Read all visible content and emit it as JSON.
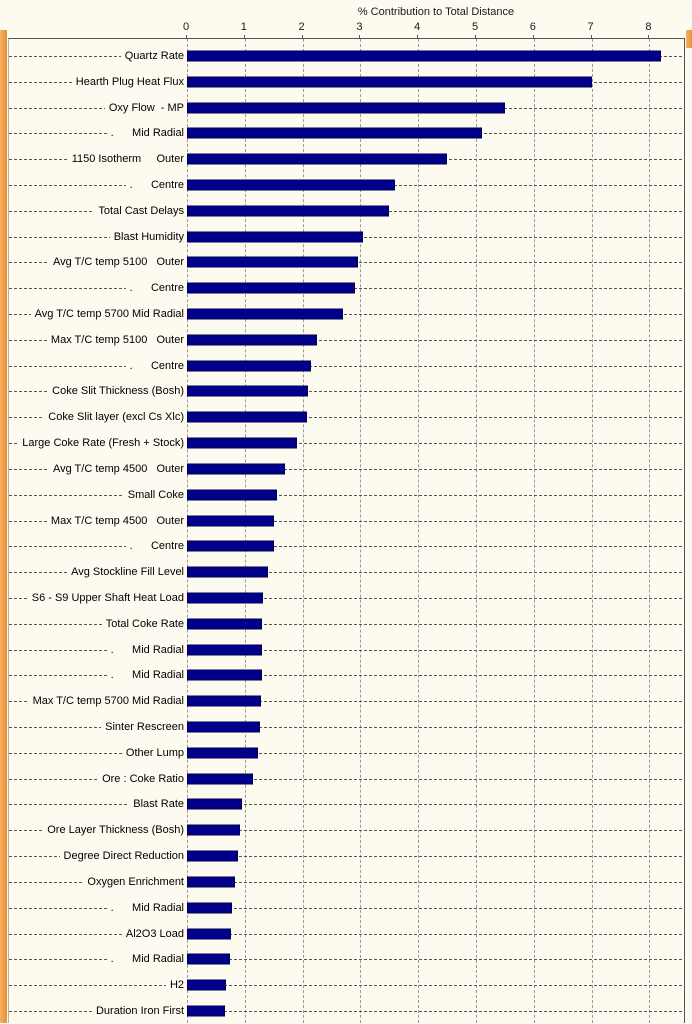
{
  "window": {
    "border_color": "#F0A04B",
    "background_color": "#FDFAF0"
  },
  "chart_data": {
    "type": "bar",
    "orientation": "horizontal",
    "title": "% Contribution to Total Distance",
    "xlabel": "% Contribution to Total Distance",
    "ylabel": "",
    "xlim": [
      0,
      8.65
    ],
    "x_ticks": [
      0,
      1,
      2,
      3,
      4,
      5,
      6,
      7,
      8
    ],
    "grid": "vertical-dashed",
    "legend": "none",
    "bar_color": "#00008B",
    "categories": [
      "Quartz Rate",
      "Hearth Plug Heat Flux",
      "Oxy Flow  - MP",
      ".      Mid Radial",
      "1150 Isotherm     Outer",
      ".      Centre",
      "Total Cast Delays",
      "Blast Humidity",
      "Avg T/C temp 5100   Outer",
      ".      Centre",
      "Avg T/C temp 5700 Mid Radial",
      "Max T/C temp 5100   Outer",
      ".      Centre",
      "Coke Slit Thickness (Bosh)",
      "Coke Slit layer (excl Cs Xlc)",
      "Large Coke Rate (Fresh + Stock)",
      "Avg T/C temp 4500   Outer",
      "Small Coke",
      "Max T/C temp 4500   Outer",
      ".      Centre",
      "Avg Stockline Fill Level",
      "S6 - S9 Upper Shaft Heat Load",
      "Total Coke Rate",
      ".      Mid Radial",
      ".      Mid Radial",
      "Max T/C temp 5700 Mid Radial",
      "Sinter Rescreen",
      "Other Lump",
      "Ore : Coke Ratio",
      "Blast Rate",
      "Ore Layer Thickness (Bosh)",
      "Degree Direct Reduction",
      "Oxygen Enrichment",
      ".      Mid Radial",
      "Al2O3 Load",
      ".      Mid Radial",
      "H2",
      "Duration Iron First"
    ],
    "values": [
      8.2,
      7.0,
      5.5,
      5.1,
      4.5,
      3.6,
      3.5,
      3.05,
      2.95,
      2.9,
      2.7,
      2.25,
      2.15,
      2.1,
      2.08,
      1.9,
      1.7,
      1.55,
      1.5,
      1.5,
      1.4,
      1.32,
      1.3,
      1.3,
      1.3,
      1.28,
      1.26,
      1.22,
      1.15,
      0.95,
      0.92,
      0.88,
      0.83,
      0.78,
      0.76,
      0.74,
      0.68,
      0.65
    ]
  }
}
